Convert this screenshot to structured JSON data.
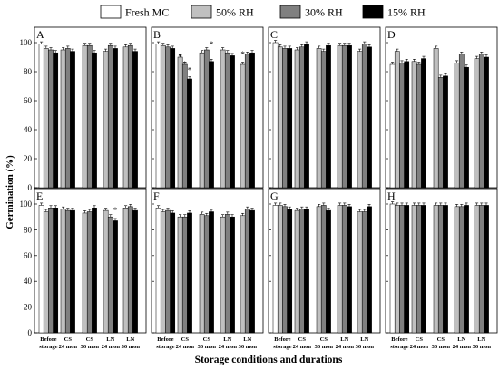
{
  "legend": [
    {
      "label": "Fresh MC",
      "color": "#ffffff"
    },
    {
      "label": "50% RH",
      "color": "#c0c0c0"
    },
    {
      "label": "30% RH",
      "color": "#808080"
    },
    {
      "label": "15% RH",
      "color": "#000000"
    }
  ],
  "ylabel": "Germination (%)",
  "xlabel": "Storage conditions and durations",
  "yticks": [
    "0",
    "20",
    "40",
    "60",
    "80",
    "100"
  ],
  "categories": [
    [
      "Before",
      "storage"
    ],
    [
      "CS",
      "24 mon"
    ],
    [
      "CS",
      "36 mon"
    ],
    [
      "LN",
      "24 mon"
    ],
    [
      "LN",
      "36 mon"
    ]
  ],
  "chart_data": [
    {
      "panel": "A",
      "type": "bar",
      "ylim": [
        0,
        100
      ],
      "series": [
        {
          "name": "Fresh MC",
          "values": [
            99,
            null,
            null,
            null,
            null
          ]
        },
        {
          "name": "50% RH",
          "values": [
            96,
            95,
            98,
            94,
            97
          ]
        },
        {
          "name": "30% RH",
          "values": [
            95,
            96,
            98,
            98,
            98
          ]
        },
        {
          "name": "15% RH",
          "values": [
            93,
            94,
            93,
            96,
            94
          ]
        }
      ]
    },
    {
      "panel": "B",
      "type": "bar",
      "ylim": [
        0,
        100
      ],
      "series": [
        {
          "name": "Fresh MC",
          "values": [
            99,
            null,
            null,
            null,
            null
          ]
        },
        {
          "name": "50% RH",
          "values": [
            98,
            90,
            93,
            95,
            85
          ]
        },
        {
          "name": "30% RH",
          "values": [
            97,
            85,
            95,
            93,
            92
          ]
        },
        {
          "name": "15% RH",
          "values": [
            96,
            75,
            87,
            91,
            93
          ]
        }
      ],
      "annotations": [
        "*",
        "*",
        "*",
        "*",
        "*"
      ]
    },
    {
      "panel": "C",
      "type": "bar",
      "ylim": [
        0,
        100
      ],
      "series": [
        {
          "name": "Fresh MC",
          "values": [
            100,
            null,
            null,
            null,
            null
          ]
        },
        {
          "name": "50% RH",
          "values": [
            97,
            95,
            96,
            98,
            94
          ]
        },
        {
          "name": "30% RH",
          "values": [
            96,
            97,
            94,
            98,
            99
          ]
        },
        {
          "name": "15% RH",
          "values": [
            96,
            99,
            98,
            98,
            97
          ]
        }
      ]
    },
    {
      "panel": "D",
      "type": "bar",
      "ylim": [
        0,
        100
      ],
      "series": [
        {
          "name": "Fresh MC",
          "values": [
            85,
            null,
            null,
            null,
            null
          ]
        },
        {
          "name": "50% RH",
          "values": [
            94,
            87,
            96,
            86,
            89
          ]
        },
        {
          "name": "30% RH",
          "values": [
            86,
            85,
            76,
            92,
            92
          ]
        },
        {
          "name": "15% RH",
          "values": [
            87,
            89,
            77,
            83,
            90
          ]
        }
      ]
    },
    {
      "panel": "E",
      "type": "bar",
      "ylim": [
        0,
        100
      ],
      "series": [
        {
          "name": "Fresh MC",
          "values": [
            99,
            null,
            null,
            null,
            null
          ]
        },
        {
          "name": "50% RH",
          "values": [
            94,
            96,
            93,
            95,
            97
          ]
        },
        {
          "name": "30% RH",
          "values": [
            97,
            95,
            94,
            90,
            98
          ]
        },
        {
          "name": "15% RH",
          "values": [
            97,
            95,
            97,
            87,
            95
          ]
        }
      ],
      "annotations": [
        "*"
      ]
    },
    {
      "panel": "F",
      "type": "bar",
      "ylim": [
        0,
        100
      ],
      "series": [
        {
          "name": "Fresh MC",
          "values": [
            97,
            null,
            null,
            null,
            null
          ]
        },
        {
          "name": "50% RH",
          "values": [
            94,
            90,
            92,
            90,
            91
          ]
        },
        {
          "name": "30% RH",
          "values": [
            95,
            90,
            91,
            92,
            96
          ]
        },
        {
          "name": "15% RH",
          "values": [
            93,
            93,
            94,
            90,
            95
          ]
        }
      ]
    },
    {
      "panel": "G",
      "type": "bar",
      "ylim": [
        0,
        100
      ],
      "series": [
        {
          "name": "Fresh MC",
          "values": [
            99,
            null,
            null,
            null,
            null
          ]
        },
        {
          "name": "50% RH",
          "values": [
            99,
            95,
            98,
            99,
            94
          ]
        },
        {
          "name": "30% RH",
          "values": [
            98,
            96,
            99,
            99,
            94
          ]
        },
        {
          "name": "15% RH",
          "values": [
            96,
            96,
            95,
            98,
            98
          ]
        }
      ]
    },
    {
      "panel": "H",
      "type": "bar",
      "ylim": [
        0,
        100
      ],
      "series": [
        {
          "name": "Fresh MC",
          "values": [
            100,
            null,
            null,
            null,
            null
          ]
        },
        {
          "name": "50% RH",
          "values": [
            99,
            99,
            99,
            98,
            99
          ]
        },
        {
          "name": "30% RH",
          "values": [
            99,
            99,
            99,
            98,
            99
          ]
        },
        {
          "name": "15% RH",
          "values": [
            99,
            99,
            99,
            99,
            99
          ]
        }
      ]
    }
  ]
}
